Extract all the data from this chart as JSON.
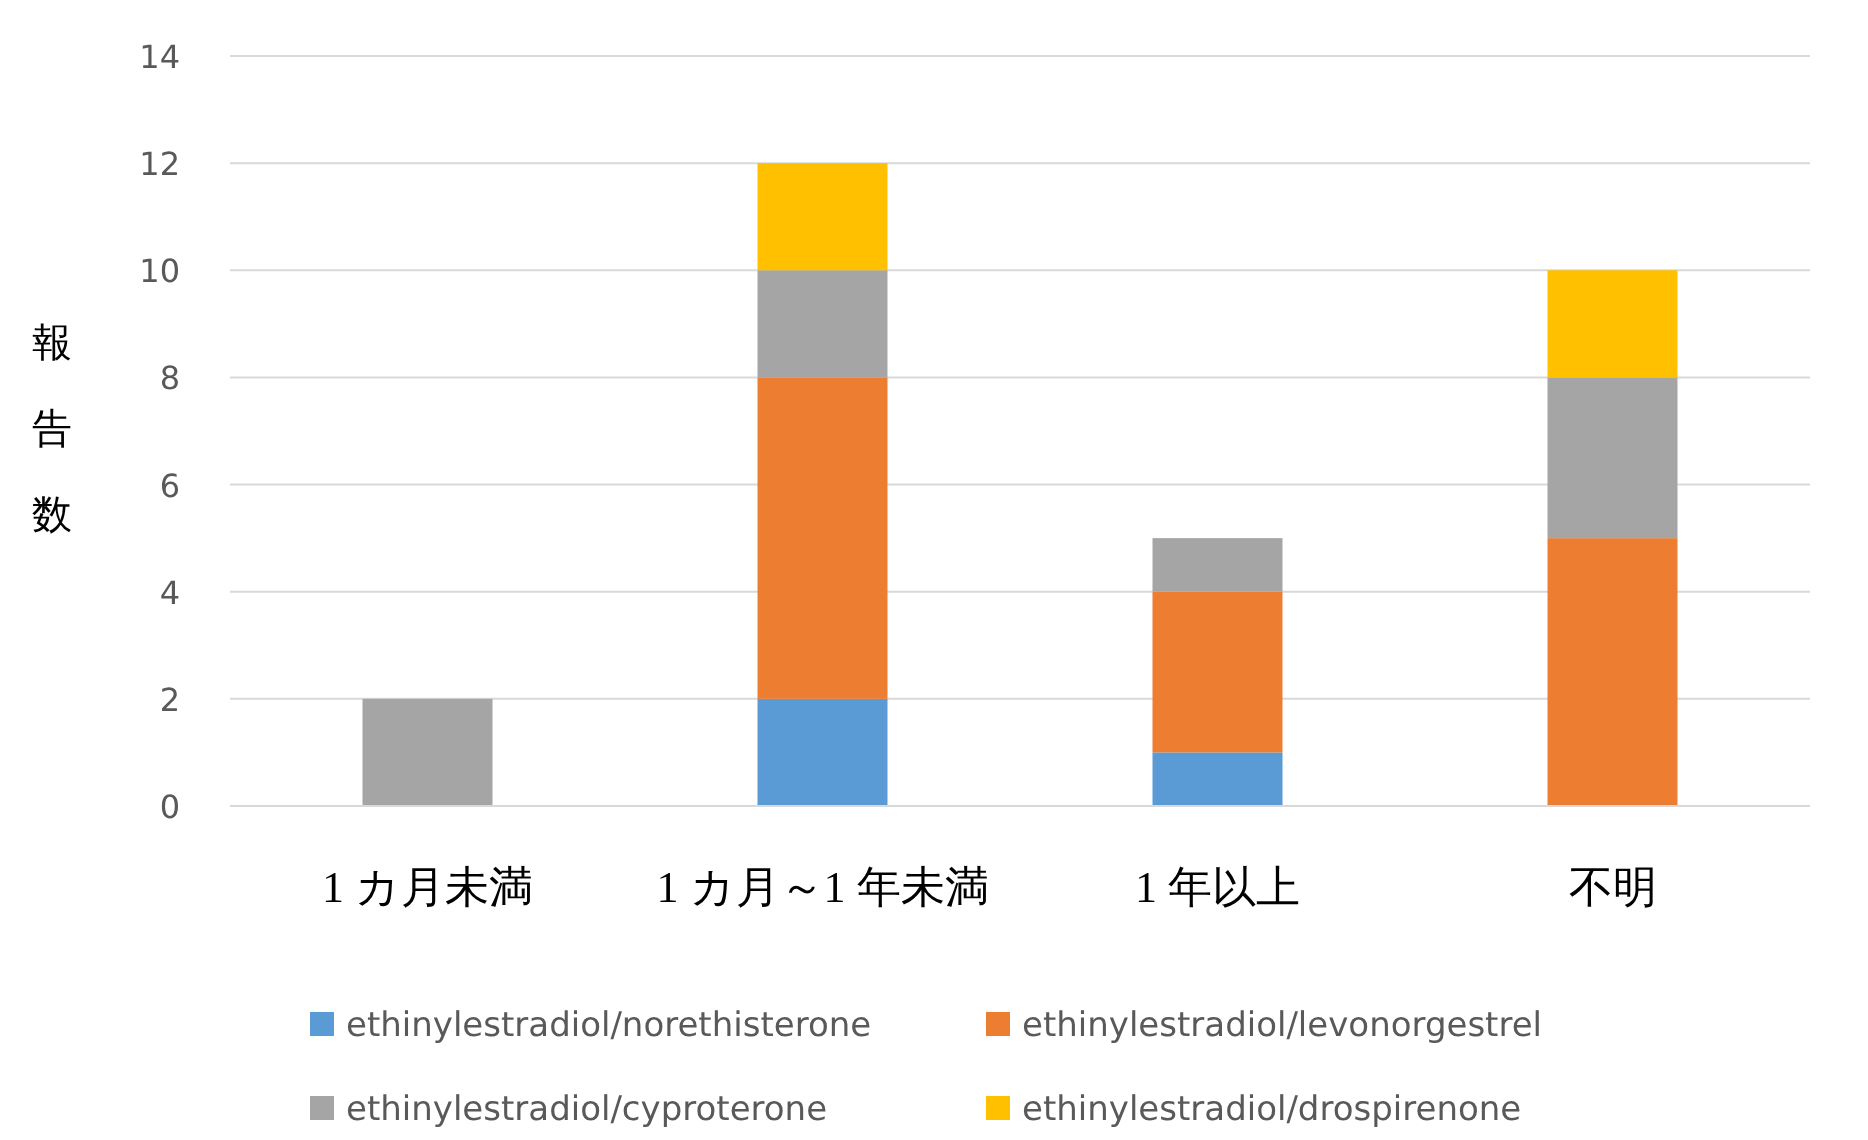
{
  "chart_data": {
    "type": "bar",
    "ylabel": "報告数",
    "categories": [
      "1 カ月未満",
      "1 カ月～1 年未満",
      "1 年以上",
      "不明"
    ],
    "series": [
      {
        "name": "ethinylestradiol/norethisterone",
        "color": "#5b9bd5",
        "values": [
          null,
          2,
          1,
          null
        ]
      },
      {
        "name": "ethinylestradiol/levonorgestrel",
        "color": "#ed7d31",
        "values": [
          null,
          6,
          3,
          5
        ]
      },
      {
        "name": "ethinylestradiol/cyproterone",
        "color": "#a5a5a5",
        "values": [
          2,
          2,
          1,
          3
        ]
      },
      {
        "name": "ethinylestradiol/drospirenone",
        "color": "#ffc000",
        "values": [
          null,
          2,
          null,
          2
        ]
      }
    ],
    "stacked": true,
    "ylim": [
      0,
      14
    ],
    "yticks": [
      0,
      2,
      4,
      6,
      8,
      10,
      12,
      14
    ],
    "grid": "y",
    "legend": "bottom"
  }
}
